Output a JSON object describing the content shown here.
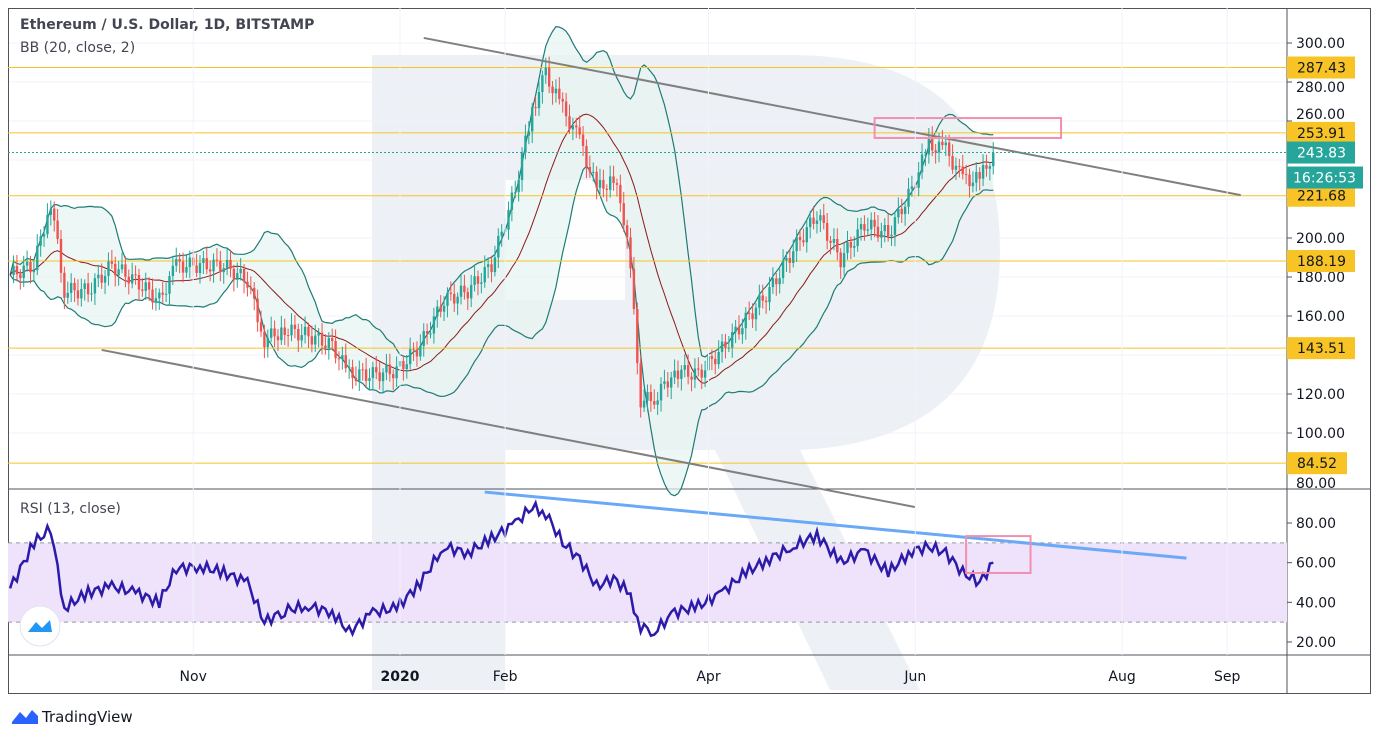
{
  "header": {
    "title": "Ethereum / U.S. Dollar, 1D, BITSTAMP",
    "bb_label": "BB (20, close, 2)",
    "rsi_label": "RSI (13, close)"
  },
  "footer": {
    "brand": "TradingView"
  },
  "colors": {
    "up": "#26a69a",
    "down": "#ef5350",
    "level": "#f7c325",
    "bb": "#1e7b75",
    "bb_fill": "#e6f4f1",
    "basis": "#8b1a1a",
    "trend": "#808080",
    "rsi_line": "#2c1ba8",
    "rsi_band": "#efe2fb",
    "rsi_trend": "#6aa9f7",
    "box": "#f090b0",
    "price_tag": "#26a69a"
  },
  "chart_data": [
    {
      "type": "candlestick",
      "title": "Ethereum / U.S. Dollar, 1D, BITSTAMP",
      "ylim": [
        80,
        310
      ],
      "y_ticks": [
        "300.00",
        "280.00",
        "260.00",
        "200.00",
        "180.00",
        "160.00",
        "120.00",
        "100.00",
        "80.00"
      ],
      "x_ticks": [
        "Nov",
        "2020",
        "Feb",
        "Apr",
        "Jun",
        "Aug",
        "Sep"
      ],
      "dates": [
        "2019-09-08",
        "2019-09-15",
        "2019-09-20",
        "2019-09-24",
        "2019-10-01",
        "2019-10-08",
        "2019-10-15",
        "2019-10-22",
        "2019-10-27",
        "2019-11-03",
        "2019-11-10",
        "2019-11-17",
        "2019-11-22",
        "2019-11-28",
        "2019-12-05",
        "2019-12-12",
        "2019-12-17",
        "2019-12-24",
        "2019-12-31",
        "2020-01-07",
        "2020-01-14",
        "2020-01-21",
        "2020-01-28",
        "2020-02-04",
        "2020-02-09",
        "2020-02-13",
        "2020-02-18",
        "2020-02-23",
        "2020-02-28",
        "2020-03-04",
        "2020-03-08",
        "2020-03-12",
        "2020-03-16",
        "2020-03-22",
        "2020-03-29",
        "2020-04-05",
        "2020-04-12",
        "2020-04-19",
        "2020-04-26",
        "2020-05-03",
        "2020-05-10",
        "2020-05-17",
        "2020-05-24",
        "2020-05-31",
        "2020-06-05",
        "2020-06-10",
        "2020-06-15",
        "2020-06-20",
        "2020-06-24"
      ],
      "close": [
        181,
        186,
        219,
        173,
        173,
        186,
        178,
        168,
        186,
        186,
        186,
        178,
        148,
        153,
        150,
        145,
        130,
        130,
        132,
        145,
        168,
        173,
        186,
        225,
        266,
        284,
        266,
        250,
        225,
        230,
        204,
        117,
        117,
        132,
        130,
        143,
        158,
        173,
        194,
        212,
        189,
        207,
        202,
        225,
        248,
        245,
        230,
        230,
        243.83
      ],
      "indicator": "BB (20, close, 2)",
      "levels": [
        287.43,
        253.91,
        221.68,
        188.19,
        143.51,
        84.52
      ],
      "last_price": "243.83",
      "countdown": "16:26:53",
      "trendlines": [
        {
          "from": [
            "2020-01-08",
            302.6
          ],
          "to": [
            "2020-09-05",
            222
          ]
        },
        {
          "from": [
            "2019-10-05",
            142.6
          ],
          "to": [
            "2020-06-01",
            62
          ]
        }
      ],
      "highlight_box": {
        "from": "2020-05-20",
        "to": "2020-07-14",
        "price": [
          251.3,
          261.5
        ]
      }
    },
    {
      "type": "line",
      "title": "RSI (13, close)",
      "ylim": [
        12,
        92
      ],
      "y_ticks": [
        "80.00",
        "60.00",
        "40.00",
        "20.00"
      ],
      "band": [
        30,
        70
      ],
      "values": [
        47,
        70,
        77,
        37,
        45,
        48,
        45,
        40,
        57,
        58,
        55,
        50,
        30,
        36,
        38,
        35,
        25,
        35,
        37,
        50,
        68,
        65,
        72,
        80,
        88,
        85,
        70,
        62,
        48,
        52,
        46,
        28,
        25,
        35,
        38,
        45,
        55,
        62,
        68,
        74,
        60,
        66,
        55,
        66,
        68,
        65,
        55,
        50,
        60
      ],
      "trendline": {
        "from": [
          "2020-01-26",
          95.6
        ],
        "to": [
          "2020-08-20",
          62.3
        ]
      },
      "highlight_box": {
        "from": "2020-06-16",
        "to": "2020-07-05",
        "rsi": [
          54.8,
          73.4
        ]
      }
    }
  ]
}
